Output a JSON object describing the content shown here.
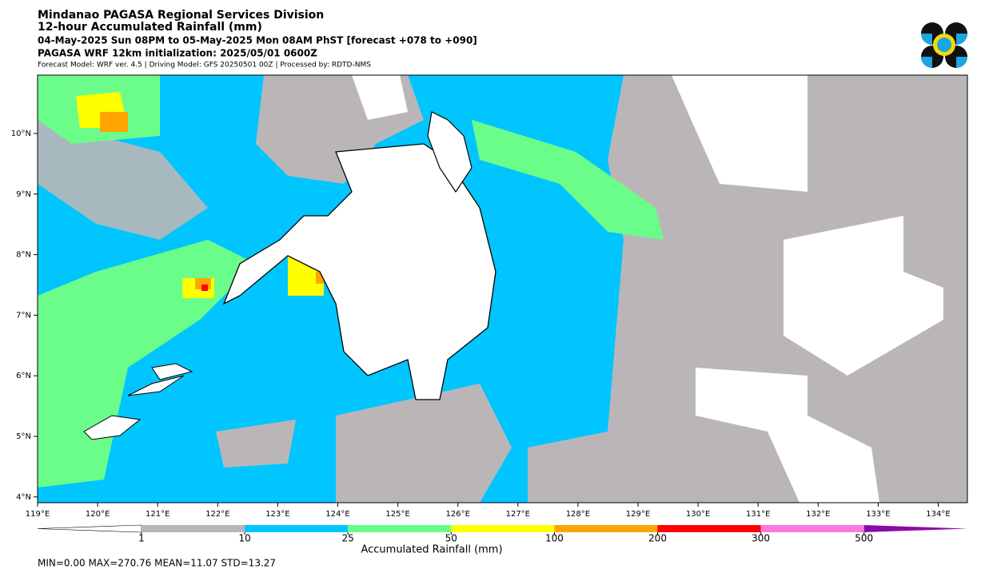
{
  "header": {
    "lines": [
      "Mindanao PAGASA Regional Services Division",
      "12-hour Accumulated Rainfall (mm)",
      "04-May-2025 Sun 08PM to 05-May-2025 Mon 08AM PhST [forecast +078 to +090]",
      "PAGASA WRF 12km initialization: 2025/05/01 0600Z",
      "Forecast Model: WRF ver. 4.5 | Driving Model: GFS 20250501 00Z | Processed by: RDTD-NMS"
    ]
  },
  "map": {
    "lat_labels": [
      "10°N",
      "9°N",
      "8°N",
      "7°N",
      "6°N",
      "5°N",
      "4°N"
    ],
    "lon_labels": [
      "119°E",
      "120°E",
      "121°E",
      "122°E",
      "123°E",
      "124°E",
      "125°E",
      "126°E",
      "127°E",
      "128°E",
      "129°E",
      "130°E",
      "131°E",
      "132°E",
      "133°E",
      "134°E"
    ]
  },
  "colorbar": {
    "labels": [
      "1",
      "10",
      "25",
      "50",
      "100",
      "200",
      "300",
      "500"
    ],
    "colors": [
      "#bab6b8",
      "#00c5ff",
      "#6bfd8a",
      "#ffff00",
      "#ffa500",
      "#ff0000",
      "#ff78dc",
      "#8a0aa8"
    ],
    "title": "Accumulated Rainfall (mm)"
  },
  "stats": "MIN=0.00   MAX=270.76   MEAN=11.07   STD=13.27"
}
